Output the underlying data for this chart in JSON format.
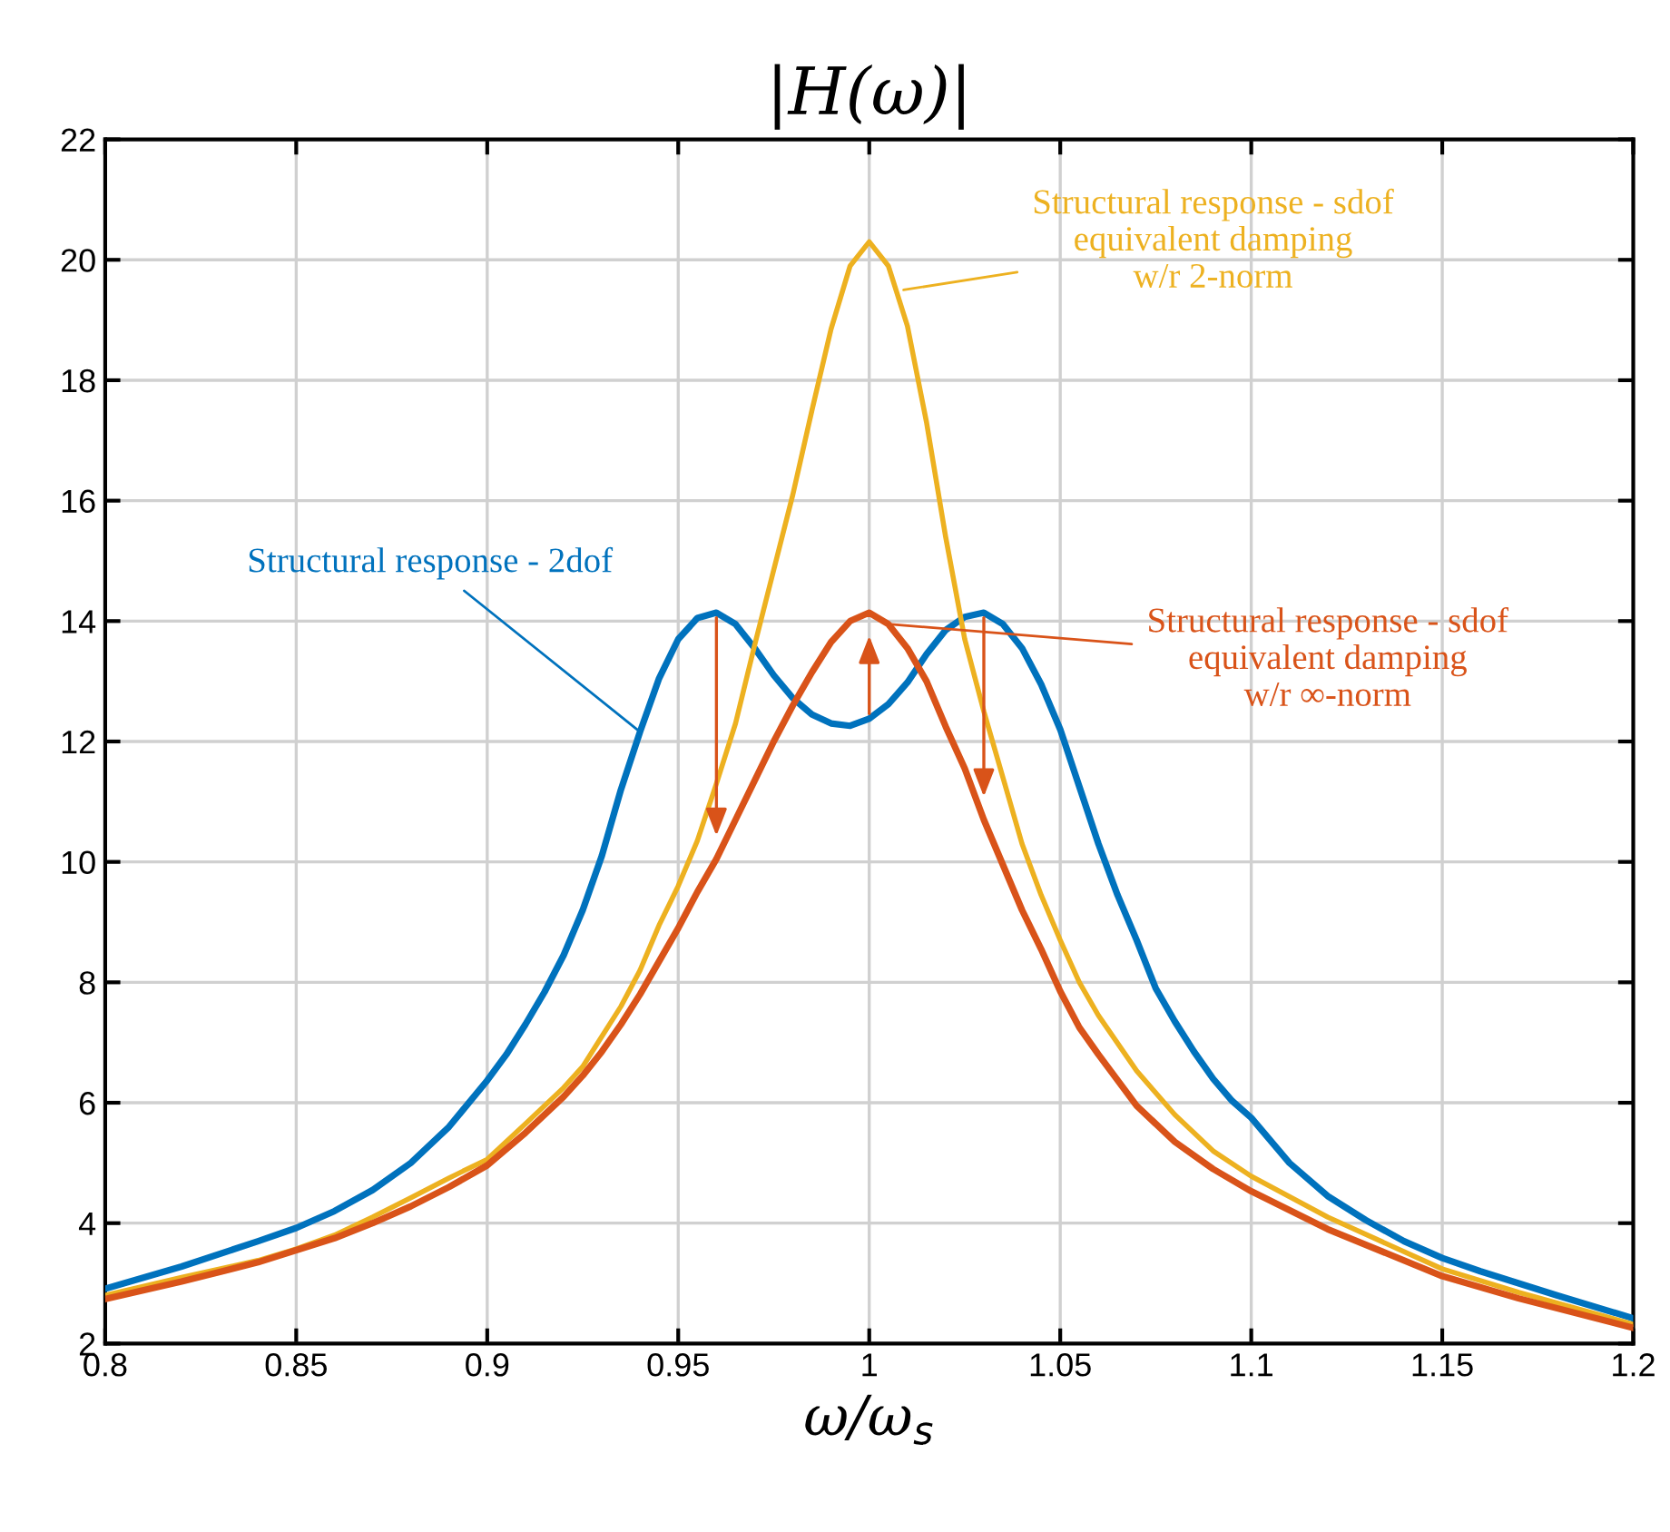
{
  "chart_data": {
    "type": "line",
    "title": "|H(ω)|",
    "xlabel": "ω/ω$_{s}$",
    "xlim": [
      0.8,
      1.2
    ],
    "xticks": [
      0.8,
      0.85,
      0.9,
      0.95,
      1,
      1.05,
      1.1,
      1.15,
      1.2
    ],
    "ylim": [
      2,
      22
    ],
    "yticks": [
      2,
      4,
      6,
      8,
      10,
      12,
      14,
      16,
      18,
      20,
      22
    ],
    "grid": true,
    "line_style": "solid",
    "series": [
      {
        "color": "#0072bd",
        "x": [
          0.8,
          0.82,
          0.84,
          0.85,
          0.86,
          0.87,
          0.88,
          0.89,
          0.9,
          0.905,
          0.91,
          0.915,
          0.92,
          0.925,
          0.93,
          0.935,
          0.94,
          0.945,
          0.95,
          0.955,
          0.96,
          0.965,
          0.97,
          0.975,
          0.98,
          0.985,
          0.99,
          0.995,
          1.0,
          1.005,
          1.01,
          1.015,
          1.02,
          1.025,
          1.03,
          1.035,
          1.04,
          1.045,
          1.05,
          1.055,
          1.06,
          1.065,
          1.07,
          1.075,
          1.08,
          1.085,
          1.09,
          1.095,
          1.1,
          1.11,
          1.12,
          1.13,
          1.14,
          1.15,
          1.16,
          1.18,
          1.2
        ],
        "values": [
          2.91,
          3.28,
          3.7,
          3.92,
          4.2,
          4.55,
          5.0,
          5.6,
          6.37,
          6.8,
          7.3,
          7.84,
          8.45,
          9.2,
          10.1,
          11.2,
          12.16,
          13.05,
          13.7,
          14.05,
          14.14,
          13.95,
          13.55,
          13.1,
          12.72,
          12.45,
          12.3,
          12.26,
          12.38,
          12.62,
          12.98,
          13.45,
          13.85,
          14.07,
          14.14,
          13.95,
          13.55,
          12.95,
          12.2,
          11.25,
          10.3,
          9.45,
          8.7,
          7.9,
          7.35,
          6.85,
          6.4,
          6.03,
          5.75,
          5.0,
          4.45,
          4.05,
          3.7,
          3.42,
          3.2,
          2.8,
          2.42
        ]
      },
      {
        "color": "#edb120",
        "x": [
          0.8,
          0.82,
          0.84,
          0.85,
          0.86,
          0.87,
          0.88,
          0.89,
          0.9,
          0.91,
          0.92,
          0.925,
          0.93,
          0.935,
          0.94,
          0.945,
          0.95,
          0.955,
          0.96,
          0.965,
          0.97,
          0.975,
          0.98,
          0.985,
          0.99,
          0.995,
          1.0,
          1.005,
          1.01,
          1.015,
          1.02,
          1.025,
          1.03,
          1.035,
          1.04,
          1.045,
          1.05,
          1.055,
          1.06,
          1.07,
          1.08,
          1.09,
          1.1,
          1.12,
          1.15,
          1.17,
          1.2
        ],
        "values": [
          2.8,
          3.1,
          3.38,
          3.57,
          3.8,
          4.1,
          4.42,
          4.75,
          5.06,
          5.65,
          6.25,
          6.6,
          7.1,
          7.6,
          8.2,
          8.95,
          9.6,
          10.35,
          11.3,
          12.3,
          13.6,
          14.85,
          16.1,
          17.5,
          18.85,
          19.9,
          20.3,
          19.9,
          18.9,
          17.3,
          15.4,
          13.7,
          12.5,
          11.4,
          10.3,
          9.45,
          8.7,
          8.0,
          7.45,
          6.53,
          5.8,
          5.2,
          4.78,
          4.1,
          3.24,
          2.85,
          2.32
        ]
      },
      {
        "color": "#d95319",
        "x": [
          0.8,
          0.82,
          0.84,
          0.85,
          0.86,
          0.87,
          0.88,
          0.89,
          0.9,
          0.91,
          0.92,
          0.925,
          0.93,
          0.935,
          0.94,
          0.945,
          0.95,
          0.955,
          0.96,
          0.965,
          0.97,
          0.975,
          0.98,
          0.985,
          0.99,
          0.995,
          1.0,
          1.005,
          1.01,
          1.015,
          1.02,
          1.025,
          1.03,
          1.035,
          1.04,
          1.045,
          1.05,
          1.055,
          1.06,
          1.07,
          1.08,
          1.09,
          1.1,
          1.12,
          1.15,
          1.17,
          1.2
        ],
        "values": [
          2.74,
          3.03,
          3.35,
          3.55,
          3.75,
          4.0,
          4.28,
          4.6,
          4.96,
          5.5,
          6.1,
          6.45,
          6.85,
          7.3,
          7.8,
          8.35,
          8.9,
          9.5,
          10.05,
          10.7,
          11.35,
          12.0,
          12.6,
          13.15,
          13.65,
          14.0,
          14.14,
          13.95,
          13.55,
          13.0,
          12.25,
          11.55,
          10.7,
          9.95,
          9.2,
          8.55,
          7.85,
          7.25,
          6.8,
          5.95,
          5.35,
          4.9,
          4.53,
          3.9,
          3.12,
          2.75,
          2.26
        ]
      }
    ],
    "annotations": [
      {
        "text": "Structural response - 2dof",
        "x": 0.94,
        "y": 12.16
      },
      {
        "text": "Structural response - sdof\nequivalent damping\nw/r 2-norm",
        "x": 1.009,
        "y": 19.5
      },
      {
        "text": "Structural response - sdof\nequivalent damping\nw/r ∞-norm",
        "x": 1.005,
        "y": 13.95
      }
    ]
  }
}
